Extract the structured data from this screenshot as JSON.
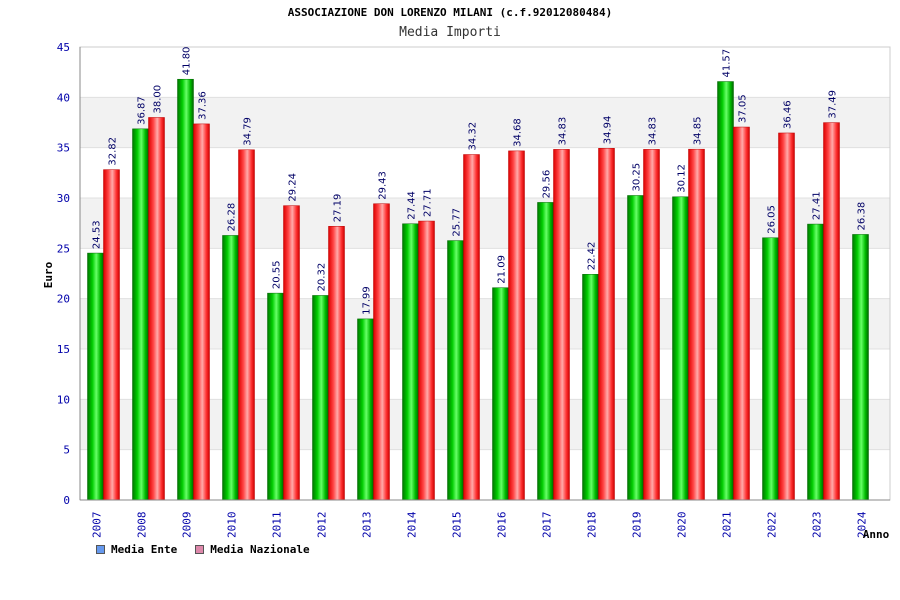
{
  "chart_data": {
    "type": "bar",
    "title": "ASSOCIAZIONE DON LORENZO MILANI (c.f.92012080484)",
    "subtitle": "Media Importi",
    "ylabel": "Euro",
    "xlabel": "Anno",
    "ylim": [
      0,
      45
    ],
    "yticks": [
      "0",
      "5",
      "10",
      "15",
      "20",
      "25",
      "30",
      "35",
      "40",
      "45"
    ],
    "grid": true,
    "legend_position": "bottom-left",
    "categories": [
      "2007",
      "2008",
      "2009",
      "2010",
      "2011",
      "2012",
      "2013",
      "2014",
      "2015",
      "2016",
      "2017",
      "2018",
      "2019",
      "2020",
      "2021",
      "2022",
      "2023",
      "2024"
    ],
    "series": [
      {
        "name": "Media Ente",
        "color": "#00aa00",
        "legend_color": "#6699ee",
        "values": [
          24.53,
          36.87,
          41.8,
          26.28,
          20.55,
          20.32,
          17.99,
          27.44,
          25.77,
          21.09,
          29.56,
          22.42,
          30.25,
          30.12,
          41.57,
          26.05,
          27.41,
          26.38
        ],
        "labels": [
          "24.53",
          "36.87",
          "41.80",
          "26.28",
          "20.55",
          "20.32",
          "17.99",
          "27.44",
          "25.77",
          "21.09",
          "29.56",
          "22.42",
          "30.25",
          "30.12",
          "41.57",
          "26.05",
          "27.41",
          "26.38"
        ]
      },
      {
        "name": "Media Nazionale",
        "color": "#ee2222",
        "legend_color": "#dd88aa",
        "values": [
          32.82,
          38.0,
          37.36,
          34.79,
          29.24,
          27.19,
          29.43,
          27.71,
          34.32,
          34.68,
          34.83,
          34.94,
          34.83,
          34.85,
          37.05,
          36.46,
          37.49,
          null
        ],
        "labels": [
          "32.82",
          "38.00",
          "37.36",
          "34.79",
          "29.24",
          "27.19",
          "29.43",
          "27.71",
          "34.32",
          "34.68",
          "34.83",
          "34.94",
          "34.83",
          "34.85",
          "37.05",
          "36.46",
          "37.49",
          null
        ]
      }
    ]
  }
}
